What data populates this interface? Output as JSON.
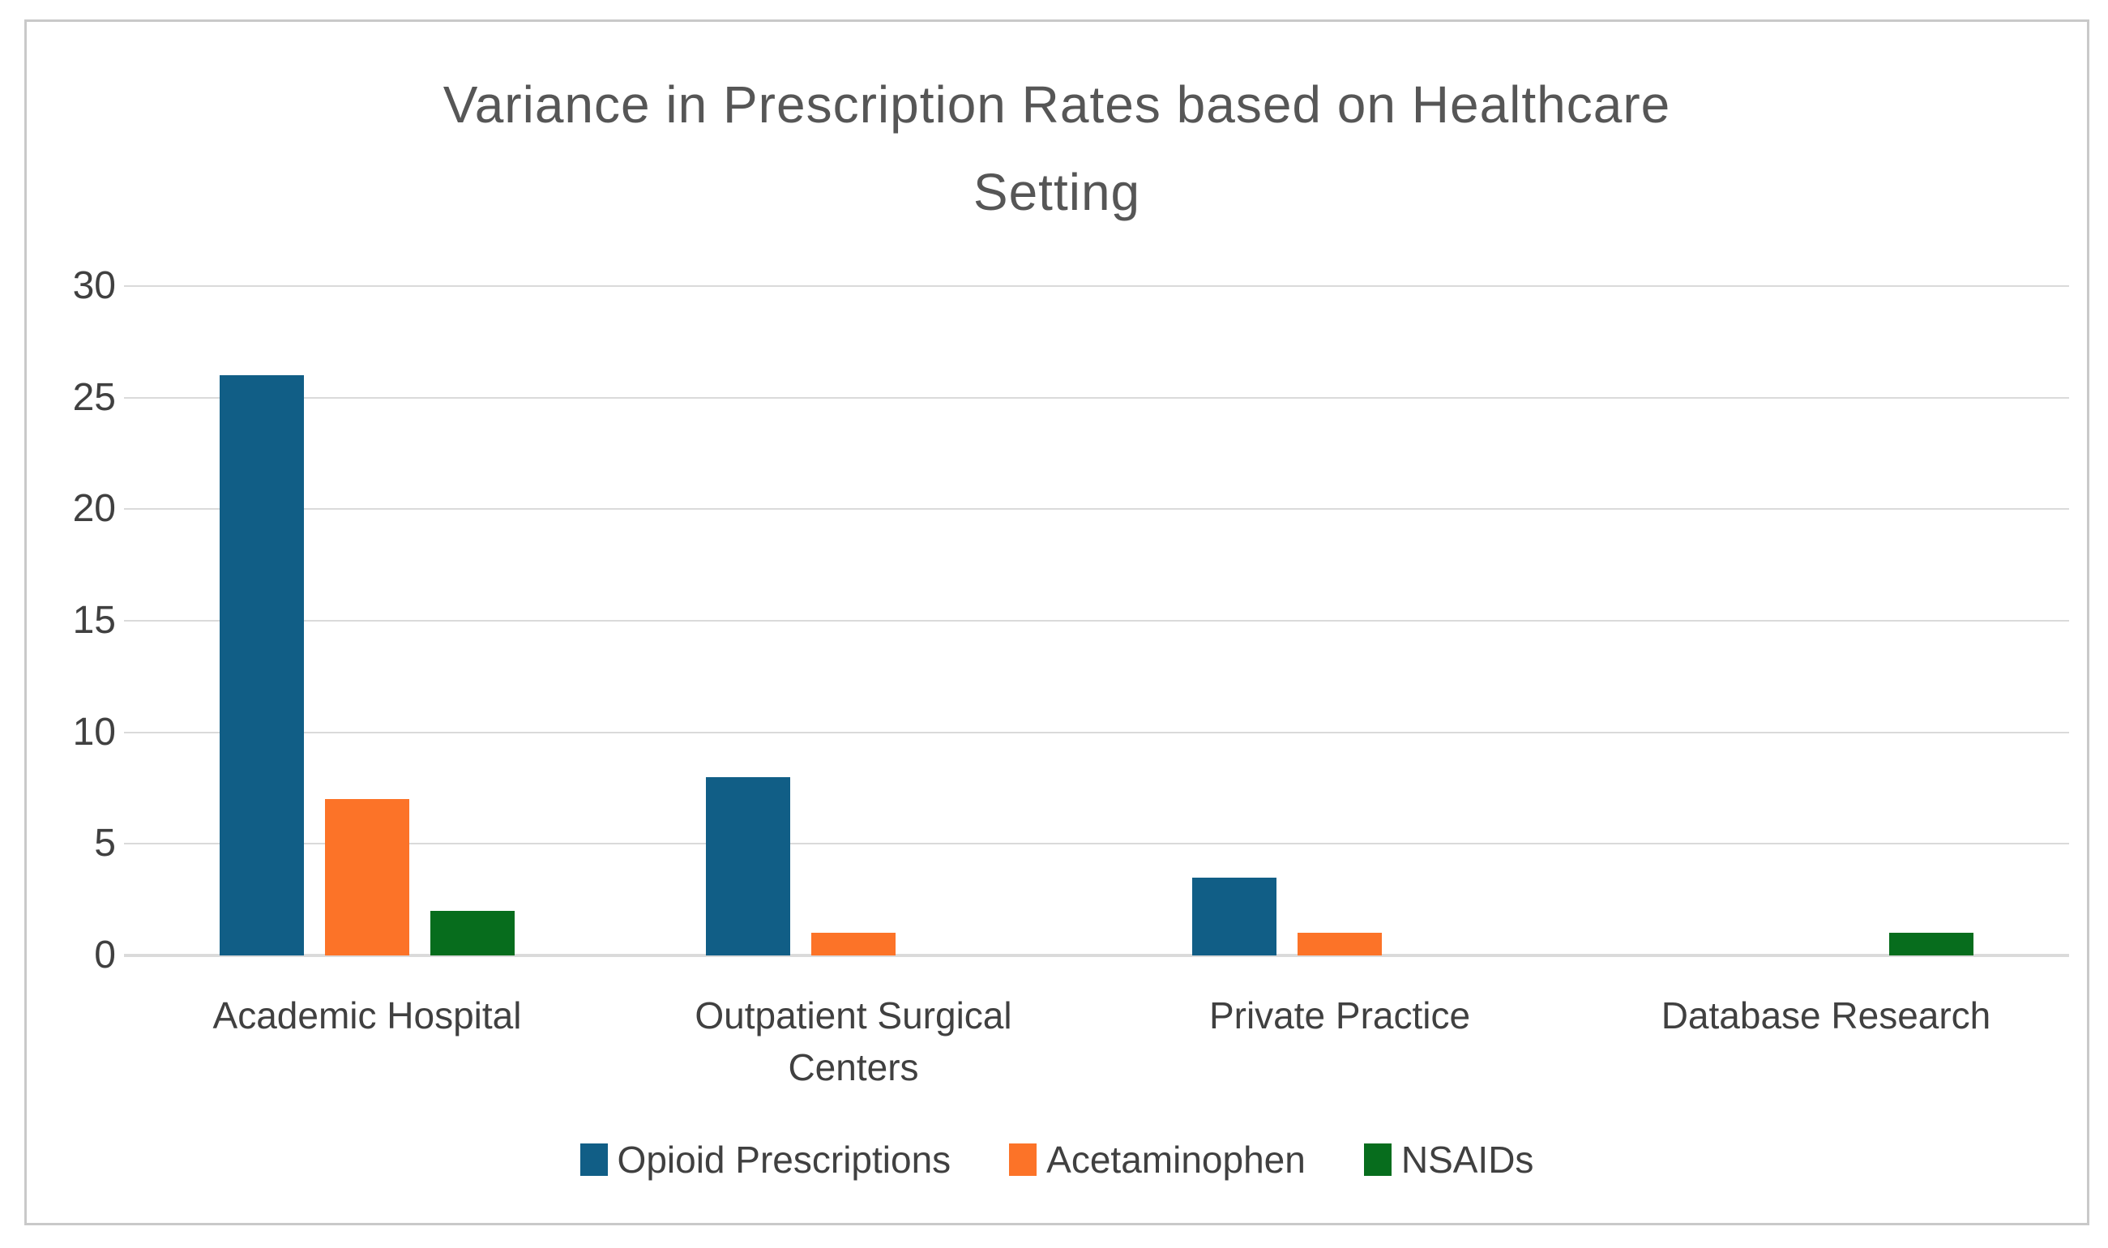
{
  "header": {
    "title_lines": [
      "Variance in Prescription Rates based on Healthcare",
      "Setting"
    ]
  },
  "chart_data": {
    "type": "bar",
    "title": "Variance in Prescription Rates based on Healthcare Setting",
    "categories": [
      "Academic Hospital",
      "Outpatient Surgical Centers",
      "Private Practice",
      "Database Research"
    ],
    "series": [
      {
        "name": "Opioid Prescriptions",
        "color": "#115E86",
        "values": [
          26,
          8,
          3.5,
          0
        ]
      },
      {
        "name": "Acetaminophen",
        "color": "#FC7328",
        "values": [
          7,
          1,
          1,
          0
        ]
      },
      {
        "name": "NSAIDs",
        "color": "#076D1D",
        "values": [
          2,
          0,
          0,
          1
        ]
      }
    ],
    "ylim": [
      0,
      30
    ],
    "yticks": [
      0,
      5,
      10,
      15,
      20,
      25,
      30
    ],
    "grid": true,
    "legend_position": "bottom",
    "xlabel": "",
    "ylabel": ""
  },
  "colors": {
    "title_text": "#565656",
    "axis_text": "#404040",
    "gridline": "#DADADA",
    "axis_line": "#DCDCDC",
    "frame_border": "#C9C9C9",
    "background": "#FFFFFF"
  }
}
